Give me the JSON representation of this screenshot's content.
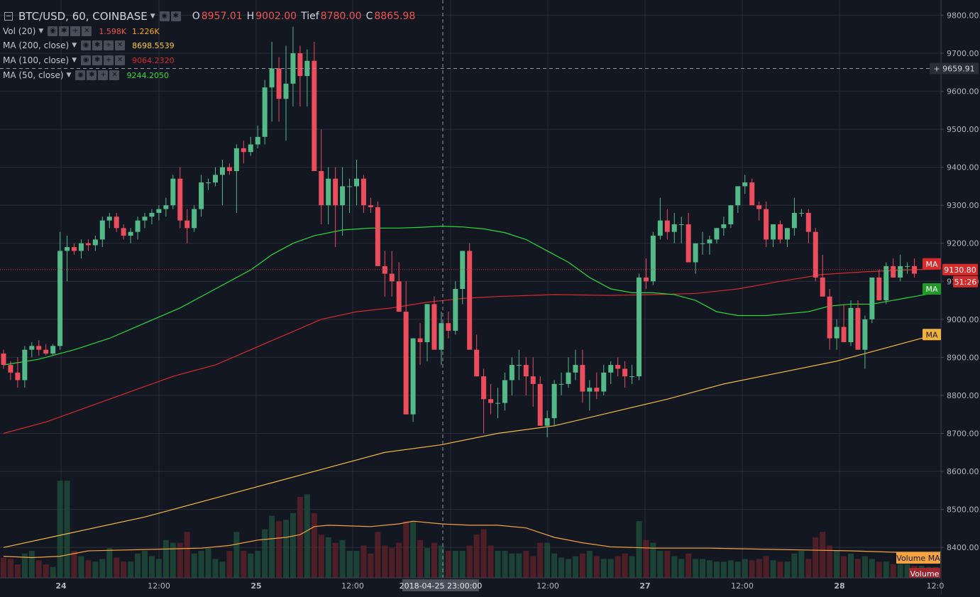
{
  "header": {
    "symbol": "BTC/USD, 60, COINBASE",
    "ohlc": [
      {
        "label": "O",
        "value": "8957.01"
      },
      {
        "label": "H",
        "value": "9002.00"
      },
      {
        "label": "Tief",
        "value": "8780.00"
      },
      {
        "label": "C",
        "value": "8865.98"
      }
    ]
  },
  "studies": [
    {
      "name": "Vol (20)",
      "values": [
        "1.598K",
        "1.226K"
      ],
      "colors": [
        "#ef5350",
        "#ffa726"
      ]
    },
    {
      "name": "MA (200, close)",
      "values": [
        "8698.5539"
      ],
      "colors": [
        "#ffc940"
      ]
    },
    {
      "name": "MA (100, close)",
      "values": [
        "9064.2320"
      ],
      "colors": [
        "#d52b2b"
      ]
    },
    {
      "name": "MA (50, close)",
      "values": [
        "9244.2050"
      ],
      "colors": [
        "#34d93b"
      ]
    }
  ],
  "colors": {
    "up": "#26a69a",
    "up_fill": "#53b987",
    "down": "#eb4d5c",
    "ma50": "#2bd93b",
    "ma100": "#d52b2b",
    "ma200": "#f5b942",
    "vol_ma": "#f5a340",
    "grid": "#2a2e39",
    "axis_text": "#b2b5be"
  },
  "chart_data": {
    "type": "candlestick",
    "y_axis": {
      "min": 8320,
      "max": 9840,
      "ticks": [
        "9800.00",
        "9700.00",
        "9600.00",
        "9500.00",
        "9400.00",
        "9300.00",
        "9200.00",
        "9100.00",
        "9000.00",
        "8900.00",
        "8800.00",
        "8700.00",
        "8600.00",
        "8500.00",
        "8400.00"
      ]
    },
    "x_axis": {
      "ticks": [
        "24",
        "12:00",
        "25",
        "12:00",
        "12:00",
        "27",
        "12:00",
        "28",
        "12:0"
      ],
      "crosshair_label": "2018-04-25 23:00:00"
    },
    "price_labels": {
      "crosshair": "9659.91",
      "last": "9130.80",
      "countdown": "51:26",
      "ma_tags": [
        "MA",
        "MA",
        "MA"
      ],
      "volume_ma": "Volume MA",
      "volume": "Volume"
    },
    "candles_ohlc": [
      [
        8910,
        8920,
        8870,
        8880
      ],
      [
        8880,
        8890,
        8840,
        8860
      ],
      [
        8860,
        8900,
        8820,
        8840
      ],
      [
        8840,
        8930,
        8820,
        8920
      ],
      [
        8920,
        8940,
        8900,
        8930
      ],
      [
        8930,
        8945,
        8905,
        8920
      ],
      [
        8920,
        8935,
        8905,
        8910
      ],
      [
        8910,
        8935,
        8905,
        8930
      ],
      [
        8930,
        9230,
        8920,
        9180
      ],
      [
        9180,
        9220,
        9100,
        9190
      ],
      [
        9190,
        9200,
        9170,
        9180
      ],
      [
        9180,
        9210,
        9160,
        9200
      ],
      [
        9200,
        9210,
        9180,
        9195
      ],
      [
        9195,
        9220,
        9180,
        9210
      ],
      [
        9210,
        9270,
        9190,
        9260
      ],
      [
        9260,
        9280,
        9240,
        9270
      ],
      [
        9270,
        9280,
        9230,
        9240
      ],
      [
        9240,
        9250,
        9210,
        9220
      ],
      [
        9220,
        9240,
        9200,
        9230
      ],
      [
        9230,
        9270,
        9210,
        9260
      ],
      [
        9260,
        9280,
        9240,
        9270
      ],
      [
        9270,
        9290,
        9250,
        9280
      ],
      [
        9280,
        9300,
        9260,
        9290
      ],
      [
        9290,
        9320,
        9270,
        9300
      ],
      [
        9300,
        9380,
        9290,
        9370
      ],
      [
        9370,
        9400,
        9240,
        9260
      ],
      [
        9260,
        9290,
        9200,
        9240
      ],
      [
        9240,
        9300,
        9230,
        9290
      ],
      [
        9290,
        9380,
        9270,
        9360
      ],
      [
        9360,
        9370,
        9340,
        9360
      ],
      [
        9360,
        9400,
        9350,
        9380
      ],
      [
        9380,
        9420,
        9300,
        9400
      ],
      [
        9400,
        9410,
        9380,
        9390
      ],
      [
        9390,
        9460,
        9280,
        9450
      ],
      [
        9450,
        9470,
        9410,
        9440
      ],
      [
        9440,
        9480,
        9430,
        9460
      ],
      [
        9460,
        9510,
        9450,
        9480
      ],
      [
        9480,
        9630,
        9460,
        9610
      ],
      [
        9610,
        9730,
        9520,
        9660
      ],
      [
        9660,
        9690,
        9520,
        9580
      ],
      [
        9580,
        9720,
        9470,
        9620
      ],
      [
        9620,
        9770,
        9560,
        9700
      ],
      [
        9700,
        9720,
        9560,
        9640
      ],
      [
        9640,
        9710,
        9560,
        9680
      ],
      [
        9680,
        9730,
        9500,
        9390
      ],
      [
        9390,
        9500,
        9250,
        9300
      ],
      [
        9300,
        9400,
        9250,
        9370
      ],
      [
        9370,
        9400,
        9190,
        9300
      ],
      [
        9300,
        9400,
        9220,
        9350
      ],
      [
        9350,
        9370,
        9280,
        9350
      ],
      [
        9350,
        9420,
        9300,
        9370
      ],
      [
        9370,
        9380,
        9280,
        9300
      ],
      [
        9300,
        9320,
        9280,
        9295
      ],
      [
        9295,
        9310,
        9150,
        9140
      ],
      [
        9140,
        9180,
        9060,
        9120
      ],
      [
        9120,
        9180,
        9060,
        9100
      ],
      [
        9100,
        9150,
        9030,
        9020
      ],
      [
        9020,
        9100,
        8750,
        8750
      ],
      [
        8750,
        8950,
        8730,
        8950
      ],
      [
        8950,
        8990,
        8880,
        8940
      ],
      [
        8940,
        9040,
        8890,
        9040
      ],
      [
        9040,
        9060,
        8980,
        8920
      ],
      [
        8920,
        9020,
        8880,
        8990
      ],
      [
        8990,
        9020,
        8950,
        8970
      ],
      [
        8970,
        9100,
        8960,
        9080
      ],
      [
        9080,
        9160,
        9040,
        9180
      ],
      [
        9180,
        9200,
        9000,
        8920
      ],
      [
        8920,
        8960,
        8850,
        8850
      ],
      [
        8850,
        8870,
        8700,
        8790
      ],
      [
        8790,
        8830,
        8750,
        8780
      ],
      [
        8780,
        8820,
        8740,
        8780
      ],
      [
        8780,
        8860,
        8760,
        8840
      ],
      [
        8840,
        8900,
        8800,
        8880
      ],
      [
        8880,
        8920,
        8840,
        8880
      ],
      [
        8880,
        8900,
        8800,
        8850
      ],
      [
        8850,
        8900,
        8770,
        8830
      ],
      [
        8830,
        8850,
        8740,
        8720
      ],
      [
        8720,
        8760,
        8690,
        8740
      ],
      [
        8740,
        8840,
        8720,
        8830
      ],
      [
        8830,
        8860,
        8800,
        8830
      ],
      [
        8830,
        8900,
        8820,
        8860
      ],
      [
        8860,
        8920,
        8840,
        8880
      ],
      [
        8880,
        8920,
        8780,
        8810
      ],
      [
        8810,
        8840,
        8760,
        8820
      ],
      [
        8820,
        8860,
        8790,
        8810
      ],
      [
        8810,
        8880,
        8800,
        8860
      ],
      [
        8860,
        8890,
        8830,
        8880
      ],
      [
        8880,
        8900,
        8850,
        8870
      ],
      [
        8870,
        8890,
        8820,
        8850
      ],
      [
        8850,
        8880,
        8830,
        8850
      ],
      [
        8850,
        9120,
        8840,
        9110
      ],
      [
        9110,
        9160,
        9080,
        9100
      ],
      [
        9100,
        9230,
        9090,
        9220
      ],
      [
        9220,
        9320,
        9210,
        9260
      ],
      [
        9260,
        9290,
        9210,
        9230
      ],
      [
        9230,
        9280,
        9200,
        9250
      ],
      [
        9250,
        9270,
        9200,
        9250
      ],
      [
        9250,
        9280,
        9160,
        9150
      ],
      [
        9150,
        9200,
        9120,
        9200
      ],
      [
        9200,
        9230,
        9170,
        9200
      ],
      [
        9200,
        9220,
        9170,
        9210
      ],
      [
        9210,
        9240,
        9200,
        9240
      ],
      [
        9240,
        9270,
        9220,
        9250
      ],
      [
        9250,
        9300,
        9240,
        9300
      ],
      [
        9300,
        9350,
        9280,
        9350
      ],
      [
        9350,
        9380,
        9330,
        9360
      ],
      [
        9360,
        9370,
        9300,
        9300
      ],
      [
        9300,
        9310,
        9260,
        9290
      ],
      [
        9290,
        9310,
        9190,
        9210
      ],
      [
        9210,
        9240,
        9190,
        9250
      ],
      [
        9250,
        9260,
        9200,
        9210
      ],
      [
        9210,
        9240,
        9190,
        9240
      ],
      [
        9240,
        9320,
        9220,
        9280
      ],
      [
        9280,
        9290,
        9270,
        9280
      ],
      [
        9280,
        9290,
        9200,
        9230
      ],
      [
        9230,
        9240,
        9100,
        9110
      ],
      [
        9110,
        9170,
        9080,
        9060
      ],
      [
        9060,
        9080,
        8920,
        8950
      ],
      [
        8950,
        9000,
        8920,
        8980
      ],
      [
        8980,
        9040,
        8950,
        8940
      ],
      [
        8940,
        9050,
        8930,
        9030
      ],
      [
        9030,
        9050,
        8920,
        8920
      ],
      [
        8920,
        9010,
        8870,
        9000
      ],
      [
        9000,
        9110,
        8990,
        9110
      ],
      [
        9110,
        9130,
        9050,
        9050
      ],
      [
        9050,
        9150,
        9040,
        9140
      ],
      [
        9140,
        9160,
        9110,
        9110
      ],
      [
        9110,
        9170,
        9100,
        9140
      ],
      [
        9140,
        9150,
        9120,
        9140
      ],
      [
        9140,
        9160,
        9110,
        9120
      ]
    ],
    "ma50": [
      [
        0,
        8880
      ],
      [
        5,
        8895
      ],
      [
        10,
        8920
      ],
      [
        15,
        8950
      ],
      [
        20,
        8990
      ],
      [
        25,
        9030
      ],
      [
        30,
        9080
      ],
      [
        35,
        9130
      ],
      [
        38,
        9170
      ],
      [
        41,
        9200
      ],
      [
        44,
        9220
      ],
      [
        48,
        9235
      ],
      [
        52,
        9240
      ],
      [
        56,
        9240
      ],
      [
        59,
        9242
      ],
      [
        62,
        9245
      ],
      [
        65,
        9243
      ],
      [
        68,
        9238
      ],
      [
        71,
        9228
      ],
      [
        74,
        9210
      ],
      [
        77,
        9180
      ],
      [
        80,
        9150
      ],
      [
        83,
        9110
      ],
      [
        86,
        9080
      ],
      [
        89,
        9070
      ],
      [
        92,
        9070
      ],
      [
        95,
        9065
      ],
      [
        98,
        9050
      ],
      [
        101,
        9020
      ],
      [
        104,
        9010
      ],
      [
        108,
        9010
      ],
      [
        111,
        9015
      ],
      [
        114,
        9020
      ],
      [
        117,
        9035
      ],
      [
        120,
        9040
      ],
      [
        123,
        9040
      ],
      [
        126,
        9050
      ],
      [
        129,
        9060
      ],
      [
        132,
        9070
      ]
    ],
    "ma100": [
      [
        0,
        8700
      ],
      [
        6,
        8730
      ],
      [
        12,
        8770
      ],
      [
        18,
        8810
      ],
      [
        24,
        8850
      ],
      [
        30,
        8880
      ],
      [
        35,
        8920
      ],
      [
        40,
        8960
      ],
      [
        45,
        9000
      ],
      [
        50,
        9020
      ],
      [
        55,
        9030
      ],
      [
        60,
        9045
      ],
      [
        65,
        9055
      ],
      [
        70,
        9060
      ],
      [
        78,
        9065
      ],
      [
        86,
        9063
      ],
      [
        92,
        9065
      ],
      [
        98,
        9068
      ],
      [
        104,
        9080
      ],
      [
        110,
        9100
      ],
      [
        116,
        9118
      ],
      [
        122,
        9125
      ],
      [
        128,
        9130
      ],
      [
        132,
        9132
      ]
    ],
    "ma200": [
      [
        0,
        8400
      ],
      [
        10,
        8440
      ],
      [
        20,
        8480
      ],
      [
        30,
        8530
      ],
      [
        38,
        8570
      ],
      [
        46,
        8610
      ],
      [
        54,
        8650
      ],
      [
        62,
        8670
      ],
      [
        70,
        8700
      ],
      [
        78,
        8720
      ],
      [
        86,
        8755
      ],
      [
        94,
        8790
      ],
      [
        102,
        8830
      ],
      [
        110,
        8860
      ],
      [
        118,
        8890
      ],
      [
        124,
        8920
      ],
      [
        128,
        8940
      ],
      [
        132,
        8960
      ]
    ],
    "volume_scale_max": 10,
    "volumes": [
      1.5,
      1.4,
      1.0,
      1.8,
      2.0,
      1.3,
      1.0,
      0.8,
      7.2,
      7.2,
      2.0,
      1.6,
      1.3,
      1.2,
      1.4,
      2.2,
      1.5,
      1.2,
      1.2,
      1.8,
      2.0,
      1.6,
      1.4,
      2.8,
      2.6,
      2.6,
      3.4,
      1.8,
      2.0,
      2.2,
      1.4,
      1.2,
      2.0,
      3.4,
      2.0,
      1.8,
      2.0,
      3.6,
      4.6,
      4.2,
      4.3,
      4.8,
      6.0,
      6.2,
      4.8,
      3.2,
      3.0,
      2.6,
      2.8,
      2.0,
      2.0,
      2.4,
      1.8,
      3.4,
      2.4,
      2.2,
      2.6,
      4.2,
      4.2,
      2.8,
      2.2,
      2.6,
      2.4,
      2.0,
      2.0,
      2.0,
      2.4,
      3.2,
      3.6,
      2.4,
      2.0,
      2.0,
      1.8,
      1.8,
      2.0,
      1.6,
      2.6,
      2.6,
      1.8,
      1.5,
      1.4,
      1.6,
      1.8,
      2.0,
      1.6,
      1.4,
      1.4,
      1.6,
      1.8,
      1.6,
      4.2,
      2.8,
      2.6,
      2.0,
      2.0,
      1.6,
      1.4,
      1.8,
      1.4,
      1.4,
      1.3,
      1.2,
      1.2,
      1.3,
      1.2,
      1.4,
      1.3,
      1.4,
      1.6,
      1.3,
      1.2,
      1.2,
      1.8,
      2.0,
      1.4,
      3.0,
      3.4,
      2.4,
      2.0,
      1.6,
      1.8,
      1.4,
      1.6,
      1.4,
      1.2,
      1.2,
      1.0,
      1.0,
      1.0,
      0.9,
      0.9,
      0.8,
      0.8
    ],
    "volume_ma": [
      [
        0,
        1.6
      ],
      [
        4,
        1.5
      ],
      [
        8,
        1.6
      ],
      [
        12,
        2.0
      ],
      [
        20,
        2.1
      ],
      [
        28,
        2.2
      ],
      [
        32,
        2.4
      ],
      [
        36,
        2.8
      ],
      [
        40,
        3.0
      ],
      [
        42,
        3.2
      ],
      [
        44,
        3.8
      ],
      [
        46,
        3.9
      ],
      [
        52,
        3.8
      ],
      [
        56,
        4.0
      ],
      [
        58,
        4.2
      ],
      [
        62,
        4.0
      ],
      [
        66,
        3.9
      ],
      [
        70,
        3.9
      ],
      [
        74,
        3.7
      ],
      [
        78,
        3.0
      ],
      [
        82,
        2.6
      ],
      [
        86,
        2.3
      ],
      [
        92,
        2.2
      ],
      [
        100,
        2.2
      ],
      [
        110,
        2.1
      ],
      [
        120,
        2.0
      ],
      [
        126,
        1.9
      ],
      [
        133,
        1.9
      ]
    ]
  }
}
